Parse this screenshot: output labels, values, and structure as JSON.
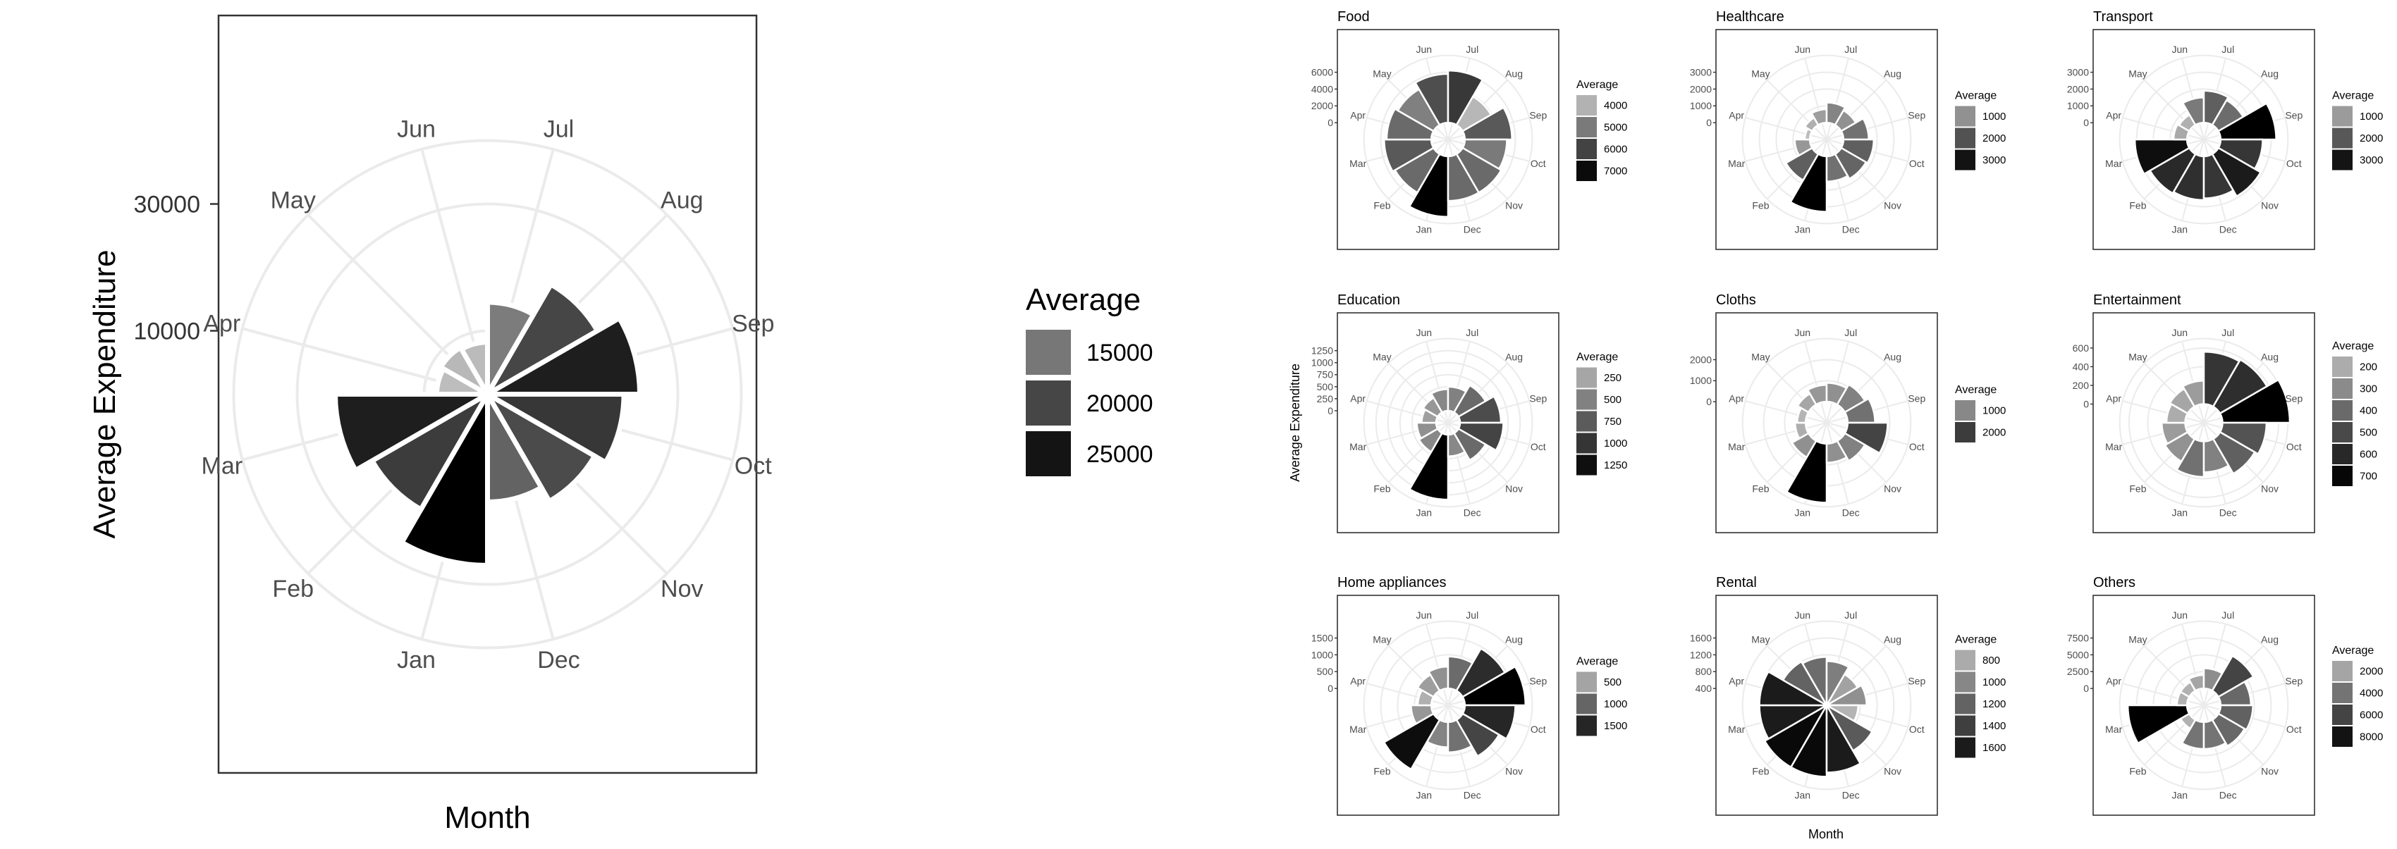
{
  "months": [
    "Jan",
    "Feb",
    "Mar",
    "Apr",
    "May",
    "Jun",
    "Jul",
    "Aug",
    "Sep",
    "Oct",
    "Nov",
    "Dec"
  ],
  "colors": {
    "grid": "#ebebeb",
    "frame": "#333333",
    "text": "#4d4d4d",
    "bar_light": "#bdbdbd",
    "bar_dark": "#000000"
  },
  "chart_data": [
    {
      "type": "polar-bar",
      "xlabel": "Month",
      "ylabel": "Average Expenditure",
      "y_ticks": [
        10000,
        30000
      ],
      "rmax": 40000,
      "legend": {
        "title": "Average",
        "labels": [
          15000,
          20000,
          25000
        ],
        "range": [
          8000,
          27000
        ]
      },
      "values": [
        27000,
        21000,
        24000,
        8000,
        8500,
        8200,
        14500,
        20000,
        24000,
        21500,
        19500,
        17000
      ]
    },
    {
      "type": "polar-bar",
      "title": "Food",
      "y_ticks": [
        0,
        2000,
        4000,
        6000
      ],
      "rmin": -2000,
      "rmax": 8000,
      "legend": {
        "title": "Average",
        "labels": [
          4000,
          5000,
          6000,
          7000
        ],
        "range": [
          3800,
          7200
        ]
      },
      "values": [
        7200,
        5300,
        5600,
        5300,
        4900,
        5800,
        6200,
        3900,
        5600,
        5000,
        5300,
        5300
      ]
    },
    {
      "type": "polar-bar",
      "title": "Healthcare",
      "y_ticks": [
        0,
        1000,
        2000,
        3000
      ],
      "rmin": -1000,
      "rmax": 4000,
      "legend": {
        "title": "Average",
        "labels": [
          1000,
          2000,
          3000
        ],
        "range": [
          300,
          3300
        ]
      },
      "values": [
        3300,
        1800,
        900,
        300,
        500,
        800,
        1200,
        1000,
        1500,
        1800,
        1700,
        1500
      ]
    },
    {
      "type": "polar-bar",
      "title": "Transport",
      "y_ticks": [
        0,
        1000,
        2000,
        3000
      ],
      "rmin": -1000,
      "rmax": 4000,
      "legend": {
        "title": "Average",
        "labels": [
          1000,
          2000,
          3000
        ],
        "range": [
          500,
          3300
        ]
      },
      "values": [
        2600,
        2700,
        3100,
        800,
        700,
        1500,
        1900,
        1700,
        3300,
        2500,
        2900,
        2500
      ]
    },
    {
      "type": "polar-bar",
      "title": "Education",
      "y_ticks": [
        0,
        250,
        500,
        750,
        1000,
        1250
      ],
      "rmin": -250,
      "rmax": 1500,
      "legend": {
        "title": "Average",
        "labels": [
          250,
          500,
          750,
          1000,
          1250
        ],
        "range": [
          100,
          1350
        ]
      },
      "values": [
        1350,
        450,
        400,
        300,
        350,
        450,
        500,
        650,
        850,
        900,
        650,
        450
      ]
    },
    {
      "type": "polar-bar",
      "title": "Cloths",
      "y_ticks": [
        0,
        1000,
        2000
      ],
      "rmin": -1000,
      "rmax": 3000,
      "legend": {
        "title": "Average",
        "labels": [
          1000,
          2000
        ],
        "range": [
          300,
          2800
        ]
      },
      "values": [
        2800,
        900,
        500,
        400,
        600,
        800,
        900,
        1100,
        1300,
        1900,
        1100,
        900
      ]
    },
    {
      "type": "polar-bar",
      "title": "Entertainment",
      "y_ticks": [
        0,
        200,
        400,
        600
      ],
      "rmin": -200,
      "rmax": 700,
      "legend": {
        "title": "Average",
        "labels": [
          200,
          300,
          400,
          500,
          600,
          700
        ],
        "range": [
          150,
          720
        ]
      },
      "values": [
        380,
        280,
        250,
        200,
        220,
        250,
        560,
        580,
        720,
        470,
        430,
        330
      ]
    },
    {
      "type": "polar-bar",
      "title": "Home appliances",
      "y_ticks": [
        0,
        500,
        1000,
        1500
      ],
      "rmin": -500,
      "rmax": 2000,
      "legend": {
        "title": "Average",
        "labels": [
          500,
          1000,
          1500
        ],
        "range": [
          300,
          1800
        ]
      },
      "values": [
        750,
        1700,
        600,
        400,
        550,
        650,
        950,
        1450,
        1800,
        1500,
        1250,
        900
      ]
    },
    {
      "type": "polar-bar",
      "title": "Rental",
      "y_ticks": [
        400,
        800,
        1200,
        1600
      ],
      "rmin": 0,
      "rmax": 2000,
      "legend": {
        "title": "Average",
        "labels": [
          800,
          1000,
          1200,
          1400,
          1600
        ],
        "range": [
          700,
          1750
        ]
      },
      "values": [
        1700,
        1700,
        1600,
        1600,
        1200,
        1150,
        1050,
        850,
        950,
        750,
        1250,
        1600
      ]
    },
    {
      "type": "polar-bar",
      "title": "Others",
      "y_ticks": [
        0,
        2500,
        5000,
        7500
      ],
      "rmin": -2500,
      "rmax": 10000,
      "legend": {
        "title": "Average",
        "labels": [
          2000,
          4000,
          6000,
          8000
        ],
        "range": [
          1000,
          8800
        ]
      },
      "values": [
        4000,
        1500,
        8800,
        1500,
        1500,
        2000,
        3000,
        6000,
        4500,
        4800,
        4500,
        4000
      ]
    }
  ],
  "shared": {
    "xlabel": "Month",
    "ylabel": "Average Expenditure"
  }
}
